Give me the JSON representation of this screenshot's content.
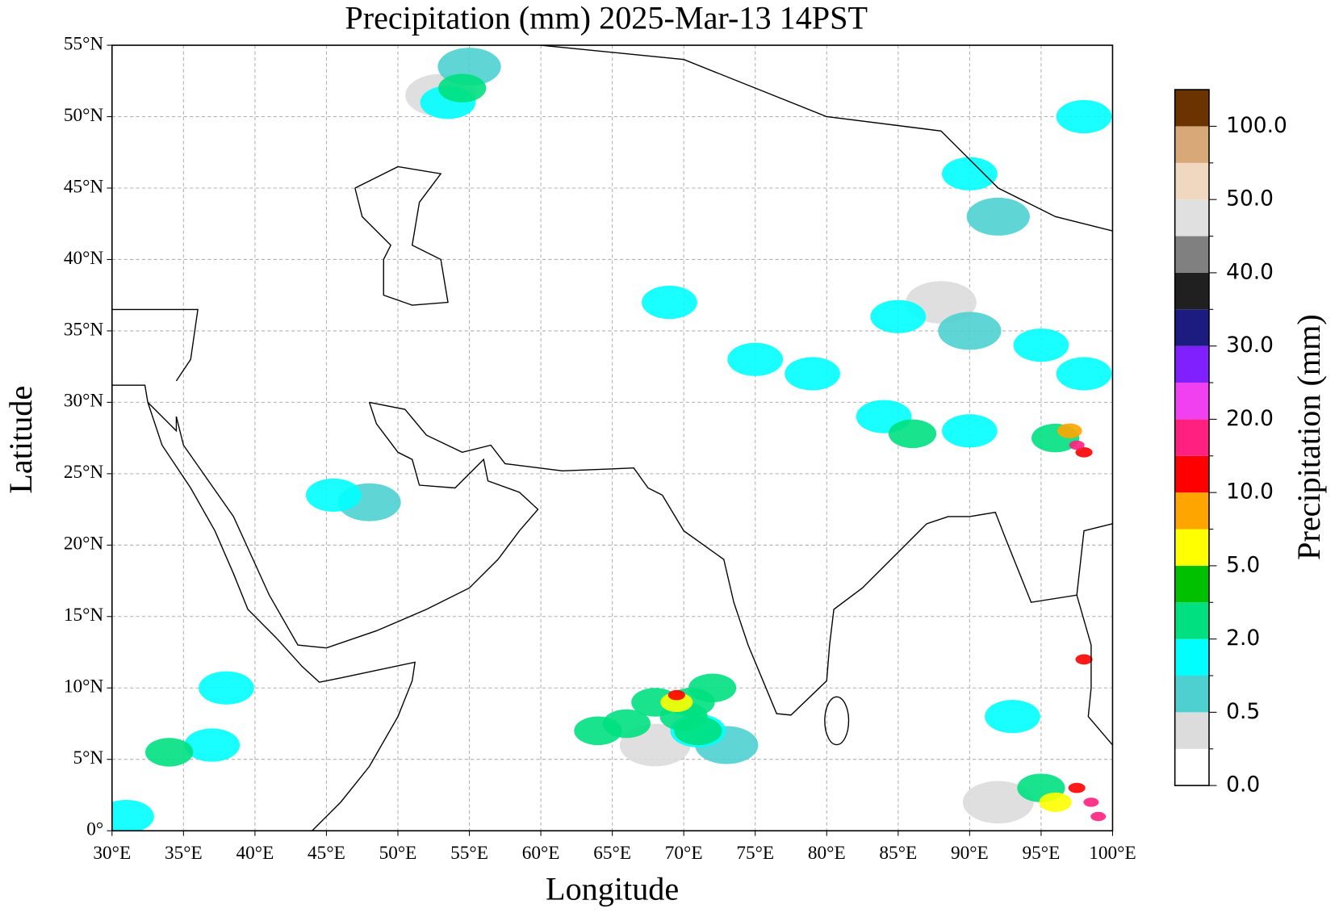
{
  "chart_data": {
    "type": "map",
    "title": "Precipitation (mm)  2025-Mar-13 14PST",
    "x_label": "Longitude",
    "y_label": "Latitude",
    "xlim": [
      30,
      100
    ],
    "ylim": [
      0,
      55
    ],
    "xticks": [
      {
        "value": 30,
        "label": "30°E"
      },
      {
        "value": 35,
        "label": "35°E"
      },
      {
        "value": 40,
        "label": "40°E"
      },
      {
        "value": 45,
        "label": "45°E"
      },
      {
        "value": 50,
        "label": "50°E"
      },
      {
        "value": 55,
        "label": "55°E"
      },
      {
        "value": 60,
        "label": "60°E"
      },
      {
        "value": 65,
        "label": "65°E"
      },
      {
        "value": 70,
        "label": "70°E"
      },
      {
        "value": 75,
        "label": "75°E"
      },
      {
        "value": 80,
        "label": "80°E"
      },
      {
        "value": 85,
        "label": "85°E"
      },
      {
        "value": 90,
        "label": "90°E"
      },
      {
        "value": 95,
        "label": "95°E"
      },
      {
        "value": 100,
        "label": "100°E"
      }
    ],
    "yticks": [
      {
        "value": 0,
        "label": "0°"
      },
      {
        "value": 5,
        "label": "5°N"
      },
      {
        "value": 10,
        "label": "10°N"
      },
      {
        "value": 15,
        "label": "15°N"
      },
      {
        "value": 20,
        "label": "20°N"
      },
      {
        "value": 25,
        "label": "25°N"
      },
      {
        "value": 30,
        "label": "30°N"
      },
      {
        "value": 35,
        "label": "35°N"
      },
      {
        "value": 40,
        "label": "40°N"
      },
      {
        "value": 45,
        "label": "45°N"
      },
      {
        "value": 50,
        "label": "50°N"
      },
      {
        "value": 55,
        "label": "55°N"
      }
    ],
    "grid": true,
    "colorbar": {
      "label": "Precipitation (mm)",
      "colors": [
        "#ffffff",
        "#dcdcdc",
        "#4fd0d0",
        "#00ffff",
        "#00e080",
        "#00c000",
        "#ffff00",
        "#ffa500",
        "#ff0000",
        "#ff2080",
        "#f040f0",
        "#8020ff",
        "#1c1c80",
        "#202020",
        "#808080",
        "#e0e0e0",
        "#f0d8c0",
        "#d8a878",
        "#6b3300"
      ],
      "ticks": [
        {
          "value": 0,
          "label": "0.0"
        },
        {
          "value": 0.5,
          "label": "0.5"
        },
        {
          "value": 2,
          "label": "2.0"
        },
        {
          "value": 5,
          "label": "5.0"
        },
        {
          "value": 10,
          "label": "10.0"
        },
        {
          "value": 20,
          "label": "20.0"
        },
        {
          "value": 30,
          "label": "30.0"
        },
        {
          "value": 40,
          "label": "40.0"
        },
        {
          "value": 50,
          "label": "50.0"
        },
        {
          "value": 100,
          "label": "100.0"
        }
      ]
    },
    "x": [
      88,
      68,
      92,
      53,
      55,
      73,
      90,
      92,
      48,
      53.5,
      85,
      95,
      98,
      79,
      75,
      71,
      69,
      84,
      90,
      93,
      37,
      38,
      31,
      45.5,
      98,
      90,
      70.5,
      54.5,
      86,
      96,
      66,
      68,
      72,
      70,
      64,
      71,
      34,
      95,
      69.5,
      97,
      96,
      98,
      69.5,
      98,
      97.5,
      98.5,
      97.5,
      99
    ],
    "values": [
      0.3,
      0.3,
      0.3,
      0.3,
      0.6,
      0.6,
      0.6,
      0.6,
      0.6,
      1.5,
      1.5,
      1.5,
      1.5,
      1.5,
      1.5,
      1.5,
      1.5,
      1.5,
      1.5,
      1.5,
      1.5,
      1.5,
      1.5,
      1.5,
      1.5,
      1.5,
      2.5,
      3,
      3,
      3,
      3,
      3,
      3,
      3,
      3,
      3,
      3,
      3,
      7,
      8,
      6,
      10,
      12,
      12,
      12,
      15,
      17,
      17
    ],
    "y": [
      37,
      6,
      2,
      51.5,
      53.5,
      6,
      35,
      43,
      23,
      51,
      36,
      34,
      32,
      32,
      33,
      7,
      37,
      29,
      28,
      8,
      6,
      10,
      1,
      23.5,
      50,
      46,
      9,
      52,
      27.8,
      27.5,
      7.5,
      9,
      10,
      8,
      7,
      7,
      5.5,
      3,
      9,
      28,
      2,
      26.5,
      9.5,
      12,
      3,
      2,
      27,
      1
    ]
  }
}
